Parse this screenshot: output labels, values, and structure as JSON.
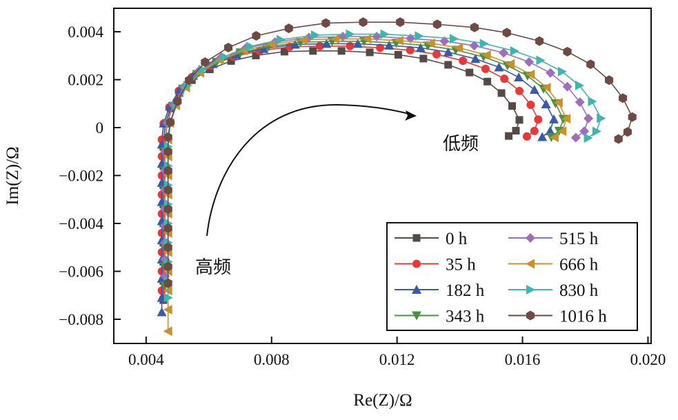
{
  "chart_data": {
    "type": "scatter",
    "title": "",
    "xlabel": "Re(Z)/Ω",
    "ylabel": "Im(Z)/Ω",
    "xlim": [
      0.00297,
      0.0201
    ],
    "ylim": [
      -0.00901,
      0.00498
    ],
    "xticks": [
      0.004,
      0.008,
      0.012,
      0.016,
      0.02
    ],
    "xtick_labels": [
      "0.004",
      "0.008",
      "0.012",
      "0.016",
      "0.020"
    ],
    "yticks": [
      0.004,
      0.002,
      0,
      -0.002,
      -0.004,
      -0.006,
      -0.008
    ],
    "ytick_labels": [
      "0.004",
      "0.002",
      "0",
      "−0.002",
      "−0.004",
      "−0.006",
      "−0.008"
    ],
    "grid": false,
    "legend_position": "bottom-right",
    "annotations": {
      "high_freq": "高频",
      "low_freq": "低频"
    },
    "series": [
      {
        "name": "0 h",
        "marker": "square",
        "color": "#544b48",
        "x": [
          0.00455,
          0.00455,
          0.00455,
          0.00455,
          0.00455,
          0.00455,
          0.00455,
          0.00455,
          0.00455,
          0.00461,
          0.00478,
          0.00506,
          0.00546,
          0.00603,
          0.00671,
          0.0075,
          0.00841,
          0.00932,
          0.01023,
          0.01113,
          0.01204,
          0.01284,
          0.01363,
          0.01431,
          0.01488,
          0.01533,
          0.01567,
          0.0159,
          0.01579,
          0.01556
        ],
        "y": [
          -0.0072,
          -0.0064,
          -0.0056,
          -0.0048,
          -0.004,
          -0.0032,
          -0.0024,
          -0.0016,
          -0.0008,
          0.00016,
          0.0008,
          0.00144,
          0.00198,
          0.00243,
          0.00278,
          0.00301,
          0.00317,
          0.0032,
          0.0032,
          0.00314,
          0.00304,
          0.00288,
          0.00262,
          0.0023,
          0.00192,
          0.00144,
          0.0009,
          0.00032,
          -0.00013,
          -0.00035
        ]
      },
      {
        "name": "35 h",
        "marker": "circle",
        "color": "#e8393a",
        "x": [
          0.0045,
          0.0045,
          0.0045,
          0.0045,
          0.0045,
          0.0045,
          0.0045,
          0.0045,
          0.0045,
          0.00456,
          0.00474,
          0.00504,
          0.00546,
          0.00606,
          0.00678,
          0.00762,
          0.00858,
          0.00954,
          0.0105,
          0.01146,
          0.01242,
          0.01326,
          0.0141,
          0.01482,
          0.01542,
          0.0159,
          0.01626,
          0.0165,
          0.01638,
          0.01614
        ],
        "y": [
          -0.0068,
          -0.006,
          -0.0052,
          -0.0044,
          -0.0036,
          -0.0028,
          -0.002,
          -0.0012,
          -0.0005,
          0.00017,
          0.00085,
          0.00153,
          0.00211,
          0.00258,
          0.00296,
          0.0032,
          0.00337,
          0.0034,
          0.0034,
          0.00333,
          0.00323,
          0.00306,
          0.00279,
          0.00245,
          0.00204,
          0.00153,
          0.00095,
          0.00034,
          -0.00014,
          -0.00037
        ]
      },
      {
        "name": "182 h",
        "marker": "triangle-up",
        "color": "#3b5aa6",
        "x": [
          0.0045,
          0.0045,
          0.0045,
          0.0045,
          0.0045,
          0.0045,
          0.0045,
          0.0045,
          0.0045,
          0.0045,
          0.00456,
          0.00475,
          0.00506,
          0.0055,
          0.00613,
          0.00688,
          0.00775,
          0.00875,
          0.00975,
          0.01075,
          0.01175,
          0.01275,
          0.01363,
          0.0145,
          0.01525,
          0.01588,
          0.01638,
          0.01675,
          0.017,
          0.01688,
          0.01663
        ],
        "y": [
          -0.0077,
          -0.0071,
          -0.0063,
          -0.0055,
          -0.0047,
          -0.0039,
          -0.0031,
          -0.0023,
          -0.0015,
          -0.0007,
          0.00018,
          0.00088,
          0.00158,
          0.00217,
          0.00266,
          0.00305,
          0.00329,
          0.00347,
          0.0035,
          0.0035,
          0.00343,
          0.00333,
          0.00315,
          0.00287,
          0.00252,
          0.0021,
          0.00158,
          0.00098,
          0.00035,
          -0.00014,
          -0.00039
        ]
      },
      {
        "name": "343 h",
        "marker": "triangle-down",
        "color": "#4a8f45",
        "x": [
          0.0046,
          0.0046,
          0.0046,
          0.0046,
          0.0046,
          0.0046,
          0.0046,
          0.0046,
          0.00466,
          0.00485,
          0.00517,
          0.00562,
          0.00625,
          0.00701,
          0.0079,
          0.00892,
          0.00993,
          0.01095,
          0.01197,
          0.01298,
          0.01387,
          0.01476,
          0.01552,
          0.01616,
          0.01667,
          0.01705,
          0.0173,
          0.01717,
          0.01692
        ],
        "y": [
          -0.0066,
          -0.0058,
          -0.005,
          -0.0042,
          -0.0034,
          -0.0026,
          -0.0018,
          -0.001,
          0.00018,
          0.0009,
          0.00162,
          0.00223,
          0.00274,
          0.00313,
          0.00338,
          0.00356,
          0.0036,
          0.0036,
          0.00353,
          0.00342,
          0.00324,
          0.00295,
          0.00259,
          0.00216,
          0.00162,
          0.00101,
          0.00036,
          -0.00014,
          -0.0004
        ]
      },
      {
        "name": "515 h",
        "marker": "diamond",
        "color": "#9e6fb8",
        "x": [
          0.0046,
          0.0046,
          0.0046,
          0.0046,
          0.0046,
          0.0046,
          0.0046,
          0.0046,
          0.00467,
          0.00487,
          0.00521,
          0.00568,
          0.00636,
          0.00717,
          0.00811,
          0.00919,
          0.01027,
          0.01135,
          0.01243,
          0.01351,
          0.01446,
          0.0154,
          0.01621,
          0.01689,
          0.01743,
          0.01783,
          0.0181,
          0.01797,
          0.0177
        ],
        "y": [
          -0.0062,
          -0.0055,
          -0.0048,
          -0.0041,
          -0.0034,
          -0.0026,
          -0.0018,
          -0.001,
          0.00019,
          0.00095,
          0.00171,
          0.00236,
          0.00289,
          0.00331,
          0.00357,
          0.00376,
          0.0038,
          0.0038,
          0.00372,
          0.00361,
          0.00342,
          0.00312,
          0.00274,
          0.00228,
          0.00171,
          0.00106,
          0.00038,
          -0.00015,
          -0.00042
        ]
      },
      {
        "name": "666 h",
        "marker": "triangle-left",
        "color": "#c8922a",
        "x": [
          0.0047,
          0.0047,
          0.0047,
          0.0047,
          0.0047,
          0.0047,
          0.0047,
          0.0047,
          0.0047,
          0.0047,
          0.0047,
          0.00476,
          0.00495,
          0.00527,
          0.00572,
          0.00635,
          0.00711,
          0.008,
          0.00902,
          0.01003,
          0.01105,
          0.01207,
          0.01308,
          0.01397,
          0.01486,
          0.01562,
          0.01626,
          0.01677,
          0.01715,
          0.0174,
          0.01727,
          0.01702
        ],
        "y": [
          -0.0085,
          -0.0076,
          -0.0068,
          -0.006,
          -0.0052,
          -0.0044,
          -0.0036,
          -0.0028,
          -0.002,
          -0.0012,
          -0.0005,
          0.00019,
          0.00093,
          0.00167,
          0.00229,
          0.00281,
          0.00322,
          0.00348,
          0.00366,
          0.0037,
          0.0037,
          0.00363,
          0.00352,
          0.00333,
          0.00303,
          0.00266,
          0.00222,
          0.00167,
          0.00104,
          0.00037,
          -0.00015,
          -0.00041
        ]
      },
      {
        "name": "830 h",
        "marker": "triangle-right",
        "color": "#3fb5ad",
        "x": [
          0.0047,
          0.0047,
          0.0047,
          0.0047,
          0.0047,
          0.0047,
          0.0047,
          0.0047,
          0.0047,
          0.00477,
          0.00498,
          0.00532,
          0.0058,
          0.00649,
          0.00732,
          0.00829,
          0.00939,
          0.0105,
          0.0116,
          0.0127,
          0.01381,
          0.01477,
          0.01574,
          0.01657,
          0.01726,
          0.01781,
          0.01822,
          0.0185,
          0.01836,
          0.01809
        ],
        "y": [
          -0.0071,
          -0.0064,
          -0.0056,
          -0.0048,
          -0.004,
          -0.0032,
          -0.0024,
          -0.0016,
          -0.0008,
          0.0002,
          0.00098,
          0.00176,
          0.00242,
          0.00296,
          0.00339,
          0.00367,
          0.00386,
          0.0039,
          0.0039,
          0.00382,
          0.00371,
          0.00351,
          0.0032,
          0.00281,
          0.00234,
          0.00176,
          0.00109,
          0.00039,
          -0.00016,
          -0.00043
        ]
      },
      {
        "name": "1016 h",
        "marker": "hexagon",
        "color": "#6e4a44",
        "x": [
          0.0047,
          0.0047,
          0.0047,
          0.0047,
          0.0047,
          0.0047,
          0.0047,
          0.0047,
          0.0047,
          0.00477,
          0.005,
          0.00537,
          0.00588,
          0.00662,
          0.00751,
          0.00855,
          0.00973,
          0.01092,
          0.0121,
          0.01328,
          0.01447,
          0.0155,
          0.01654,
          0.01743,
          0.01817,
          0.01876,
          0.0192,
          0.0195,
          0.01935,
          0.01906
        ],
        "y": [
          -0.0065,
          -0.0058,
          -0.005,
          -0.0042,
          -0.0034,
          -0.0026,
          -0.0018,
          -0.001,
          -0.0004,
          0.00022,
          0.0011,
          0.00198,
          0.00273,
          0.00334,
          0.00383,
          0.00414,
          0.00436,
          0.0044,
          0.0044,
          0.00431,
          0.00418,
          0.00396,
          0.00361,
          0.00317,
          0.00264,
          0.00198,
          0.00123,
          0.00044,
          -0.00018,
          -0.00048
        ]
      }
    ]
  }
}
